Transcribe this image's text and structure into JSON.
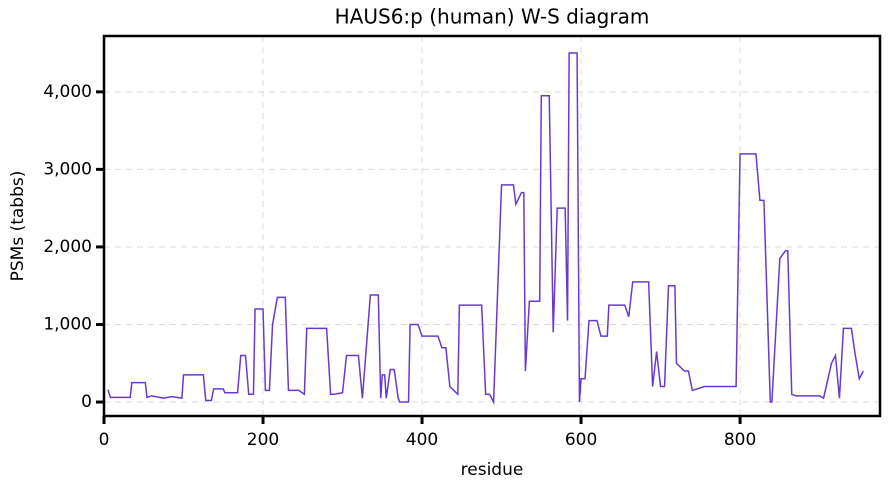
{
  "chart_data": {
    "type": "line",
    "title": "HAUS6:p (human) W-S diagram",
    "xlabel": "residue",
    "ylabel": "PSMs (tabbs)",
    "x": [
      5,
      8,
      33,
      35,
      52,
      54,
      60,
      75,
      85,
      98,
      100,
      125,
      128,
      135,
      138,
      150,
      152,
      168,
      172,
      178,
      182,
      188,
      190,
      200,
      203,
      208,
      212,
      218,
      228,
      232,
      245,
      252,
      255,
      280,
      285,
      290,
      300,
      305,
      320,
      325,
      335,
      345,
      348,
      350,
      353,
      355,
      360,
      365,
      370,
      372,
      383,
      385,
      395,
      400,
      420,
      425,
      430,
      435,
      445,
      447,
      475,
      480,
      485,
      490,
      500,
      515,
      518,
      525,
      528,
      530,
      535,
      540,
      548,
      550,
      560,
      565,
      570,
      580,
      583,
      585,
      595,
      598,
      600,
      605,
      610,
      612,
      620,
      625,
      633,
      635,
      655,
      660,
      665,
      685,
      690,
      695,
      700,
      705,
      710,
      718,
      720,
      730,
      735,
      740,
      755,
      795,
      800,
      820,
      825,
      830,
      838,
      840,
      850,
      857,
      860,
      865,
      870,
      900,
      905,
      915,
      920,
      925,
      930,
      940,
      945,
      950,
      955
    ],
    "series": [
      {
        "name": "HAUS6",
        "color": "#6a3ad0",
        "values": [
          160,
          60,
          60,
          250,
          250,
          60,
          80,
          50,
          70,
          50,
          350,
          350,
          20,
          20,
          170,
          170,
          120,
          120,
          600,
          600,
          100,
          100,
          1200,
          1200,
          150,
          150,
          1000,
          1350,
          1350,
          150,
          150,
          100,
          950,
          950,
          100,
          100,
          120,
          600,
          600,
          50,
          1380,
          1380,
          50,
          350,
          350,
          50,
          420,
          420,
          50,
          0,
          0,
          1000,
          1000,
          850,
          850,
          700,
          700,
          200,
          100,
          1250,
          1250,
          100,
          100,
          0,
          2800,
          2800,
          2550,
          2700,
          2700,
          400,
          1300,
          1300,
          1300,
          3950,
          3950,
          900,
          2500,
          2500,
          1050,
          4500,
          4500,
          0,
          300,
          300,
          1050,
          1050,
          1050,
          850,
          850,
          1250,
          1250,
          1100,
          1550,
          1550,
          200,
          650,
          200,
          200,
          1500,
          1500,
          500,
          400,
          400,
          150,
          200,
          200,
          3200,
          3200,
          2600,
          2600,
          0,
          0,
          1850,
          1950,
          1950,
          100,
          80,
          80,
          50,
          500,
          600,
          50,
          950,
          950,
          600,
          300,
          400
        ]
      }
    ],
    "xlim": [
      0,
      976
    ],
    "ylim": [
      -180,
      4720
    ],
    "xticks": [
      0,
      200,
      400,
      600,
      800
    ],
    "yticks": [
      0,
      {
        "value": 1000,
        "label": "1,000"
      },
      {
        "value": 2000,
        "label": "2,000"
      },
      {
        "value": 3000,
        "label": "3,000"
      },
      {
        "value": 4000,
        "label": "4,000"
      }
    ],
    "grid": true
  }
}
